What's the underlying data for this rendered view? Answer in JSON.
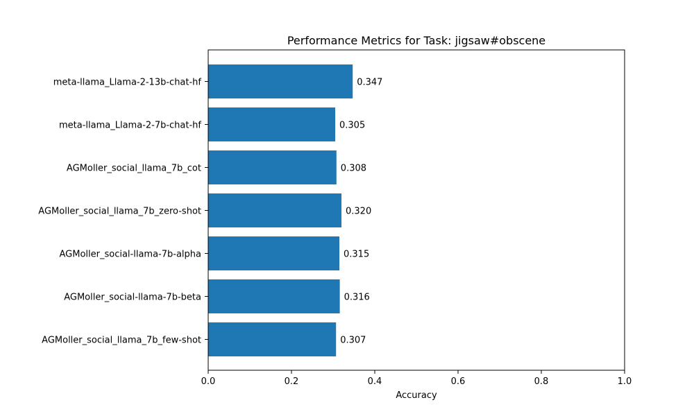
{
  "chart_data": {
    "type": "bar",
    "orientation": "horizontal",
    "title": "Performance Metrics for Task: jigsaw#obscene",
    "xlabel": "Accuracy",
    "ylabel": "",
    "xlim": [
      0,
      1
    ],
    "x_ticks": [
      "0.0",
      "0.2",
      "0.4",
      "0.6",
      "0.8",
      "1.0"
    ],
    "categories": [
      "meta-llama_Llama-2-13b-chat-hf",
      "meta-llama_Llama-2-7b-chat-hf",
      "AGMoller_social_llama_7b_cot",
      "AGMoller_social_llama_7b_zero-shot",
      "AGMoller_social-llama-7b-alpha",
      "AGMoller_social-llama-7b-beta",
      "AGMoller_social_llama_7b_few-shot"
    ],
    "values": [
      0.347,
      0.305,
      0.308,
      0.32,
      0.315,
      0.316,
      0.307
    ],
    "value_labels": [
      "0.347",
      "0.305",
      "0.308",
      "0.320",
      "0.315",
      "0.316",
      "0.307"
    ],
    "bar_color": "#1f77b4",
    "grid": false,
    "legend": "none"
  }
}
